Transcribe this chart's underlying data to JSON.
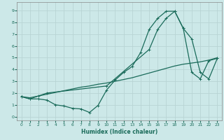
{
  "xlabel": "Humidex (Indice chaleur)",
  "bg_color": "#cce8e8",
  "grid_color": "#b0d0d0",
  "line_color": "#1a6b5a",
  "xlim": [
    -0.5,
    23.5
  ],
  "ylim": [
    -0.3,
    9.7
  ],
  "xticks": [
    0,
    1,
    2,
    3,
    4,
    5,
    6,
    7,
    8,
    9,
    10,
    11,
    12,
    13,
    14,
    15,
    16,
    17,
    18,
    19,
    20,
    21,
    22,
    23
  ],
  "yticks": [
    0,
    1,
    2,
    3,
    4,
    5,
    6,
    7,
    8,
    9
  ],
  "line1_x": [
    0,
    1,
    2,
    3,
    4,
    5,
    6,
    7,
    8,
    9,
    10,
    11,
    12,
    13,
    14,
    15,
    16,
    17,
    18,
    19,
    20,
    21,
    22,
    23
  ],
  "line1_y": [
    1.7,
    1.5,
    1.5,
    1.4,
    1.0,
    0.9,
    0.7,
    0.65,
    0.35,
    0.95,
    2.25,
    3.1,
    3.75,
    4.25,
    5.45,
    7.4,
    8.35,
    8.95,
    8.95,
    7.5,
    3.75,
    3.2,
    4.75,
    4.95
  ],
  "line2_x": [
    0,
    1,
    2,
    3,
    10,
    15,
    16,
    17,
    18,
    19,
    20,
    21,
    22,
    23
  ],
  "line2_y": [
    1.7,
    1.5,
    1.75,
    2.0,
    2.6,
    5.7,
    7.4,
    8.35,
    8.95,
    7.5,
    6.6,
    3.75,
    3.2,
    4.95
  ],
  "line3_x": [
    0,
    1,
    2,
    3,
    4,
    5,
    6,
    7,
    8,
    9,
    10,
    11,
    12,
    13,
    14,
    15,
    16,
    17,
    18,
    19,
    20,
    21,
    22,
    23
  ],
  "line3_y": [
    1.7,
    1.6,
    1.75,
    1.9,
    2.05,
    2.2,
    2.35,
    2.5,
    2.6,
    2.75,
    2.85,
    3.0,
    3.15,
    3.3,
    3.5,
    3.7,
    3.9,
    4.1,
    4.3,
    4.45,
    4.55,
    4.65,
    4.8,
    5.0
  ]
}
